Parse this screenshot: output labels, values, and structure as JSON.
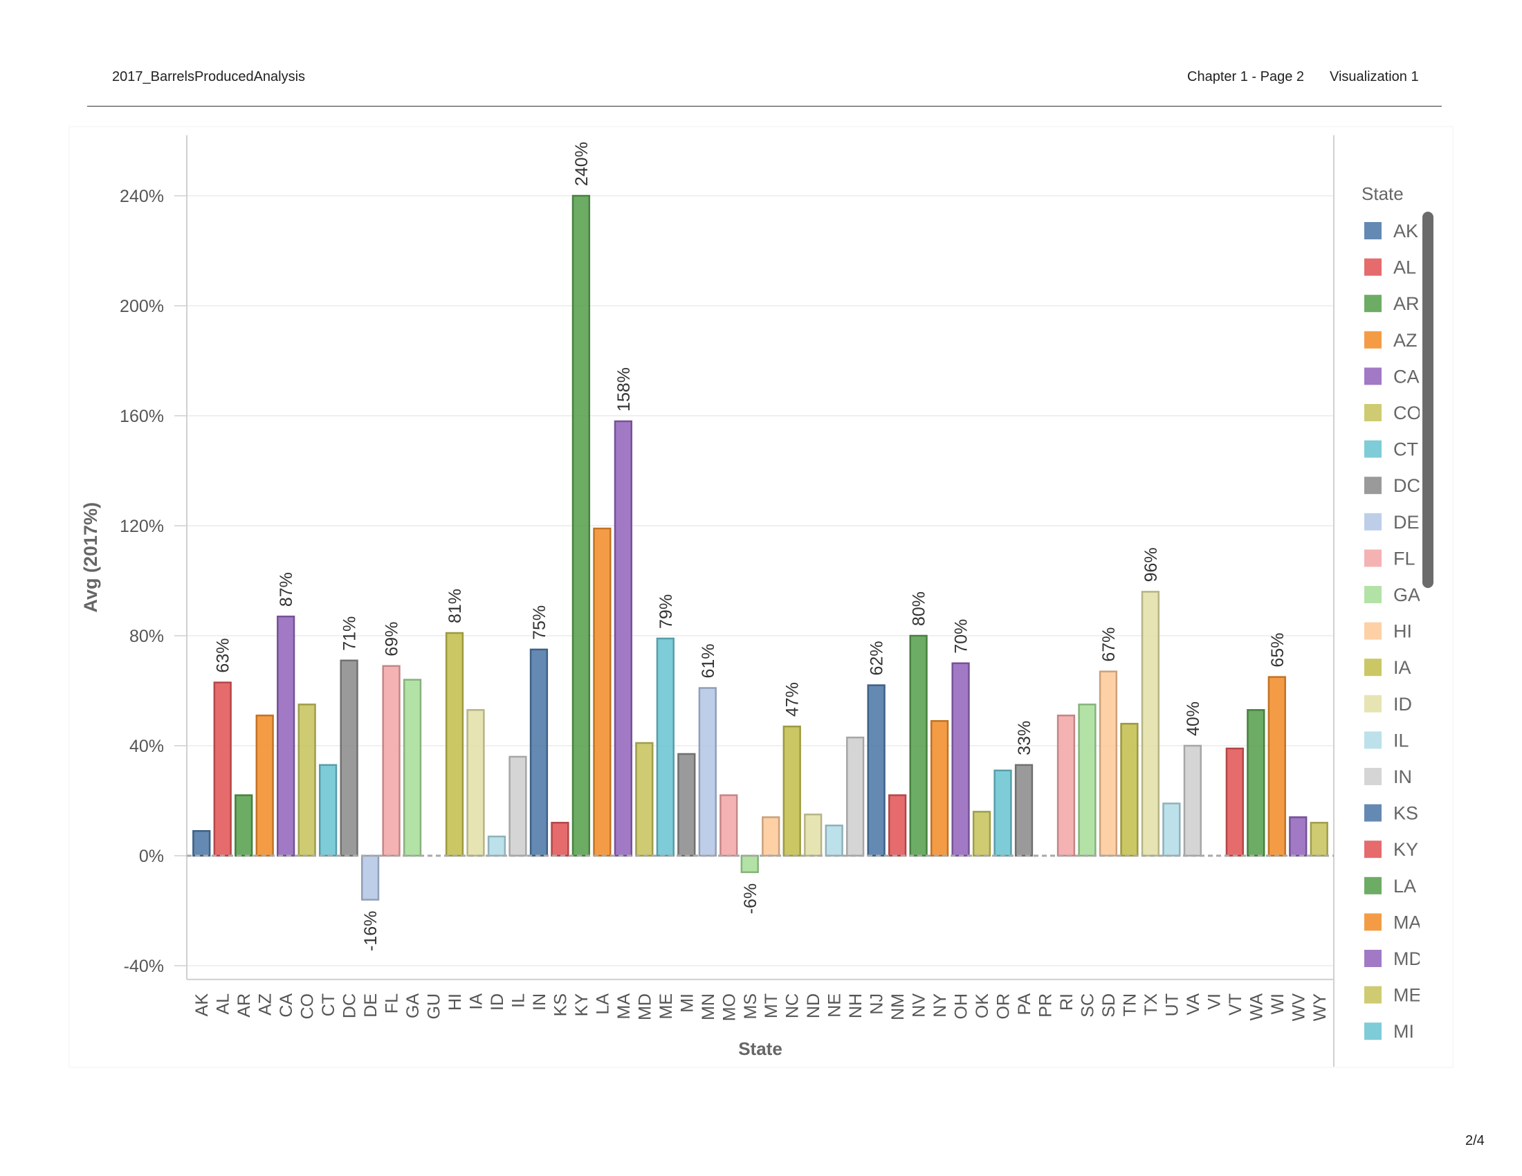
{
  "header": {
    "doc_title": "2017_BarrelsProducedAnalysis",
    "chapter": "Chapter 1 - Page 2",
    "visualization": "Visualization 1"
  },
  "page_number": "2/4",
  "chart_data": {
    "type": "bar",
    "xlabel": "State",
    "ylabel": "Avg (2017%)",
    "ylim": [
      -45,
      262
    ],
    "yticks": [
      -40,
      0,
      40,
      80,
      120,
      160,
      200,
      240
    ],
    "ytick_labels": [
      "-40%",
      "0%",
      "40%",
      "80%",
      "120%",
      "160%",
      "200%",
      "240%"
    ],
    "grid": true,
    "legend_title": "State",
    "legend_position": "right",
    "categories": [
      "AK",
      "AL",
      "AR",
      "AZ",
      "CA",
      "CO",
      "CT",
      "DC",
      "DE",
      "FL",
      "GA",
      "GU",
      "HI",
      "IA",
      "ID",
      "IL",
      "IN",
      "KS",
      "KY",
      "LA",
      "MA",
      "MD",
      "ME",
      "MI",
      "MN",
      "MO",
      "MS",
      "MT",
      "NC",
      "ND",
      "NE",
      "NH",
      "NJ",
      "NM",
      "NV",
      "NY",
      "OH",
      "OK",
      "OR",
      "PA",
      "PR",
      "RI",
      "SC",
      "SD",
      "TN",
      "TX",
      "UT",
      "VA",
      "VI",
      "VT",
      "WA",
      "WI",
      "WV",
      "WY"
    ],
    "values": [
      9,
      63,
      22,
      51,
      87,
      55,
      33,
      71,
      -16,
      69,
      64,
      null,
      81,
      53,
      7,
      36,
      75,
      12,
      240,
      119,
      158,
      41,
      79,
      37,
      61,
      22,
      -6,
      14,
      47,
      15,
      11,
      43,
      62,
      22,
      80,
      49,
      70,
      16,
      31,
      33,
      null,
      51,
      55,
      67,
      48,
      96,
      19,
      40,
      null,
      39,
      53,
      65,
      14,
      12
    ],
    "data_labels": [
      "",
      "63%",
      "",
      "",
      "87%",
      "",
      "",
      "71%",
      "-16%",
      "69%",
      "",
      "",
      "81%",
      "",
      "",
      "",
      "75%",
      "",
      "240%",
      "",
      "158%",
      "",
      "79%",
      "",
      "61%",
      "",
      "-6%",
      "",
      "47%",
      "",
      "",
      "",
      "62%",
      "",
      "80%",
      "",
      "70%",
      "",
      "",
      "33%",
      "",
      "",
      "",
      "67%",
      "",
      "96%",
      "",
      "40%",
      "",
      "",
      "",
      "65%",
      "",
      ""
    ],
    "colors": [
      "#4e79a7",
      "#e15759",
      "#59a14f",
      "#f28e2b",
      "#9467bd",
      "#c7c45e",
      "#6cc5d2",
      "#8c8c8c",
      "#b5c7e6",
      "#f4a7a9",
      "#a8de9b",
      "#fdc99a",
      "#c4bf50",
      "#e3e0a8",
      "#b3dde7",
      "#cfcfcf"
    ],
    "legend_items": [
      "AK",
      "AL",
      "AR",
      "AZ",
      "CA",
      "CO",
      "CT",
      "DC",
      "DE",
      "FL",
      "GA",
      "HI",
      "IA",
      "ID",
      "IL",
      "IN",
      "KS",
      "KY",
      "LA",
      "MA",
      "MD",
      "ME",
      "MI"
    ]
  }
}
